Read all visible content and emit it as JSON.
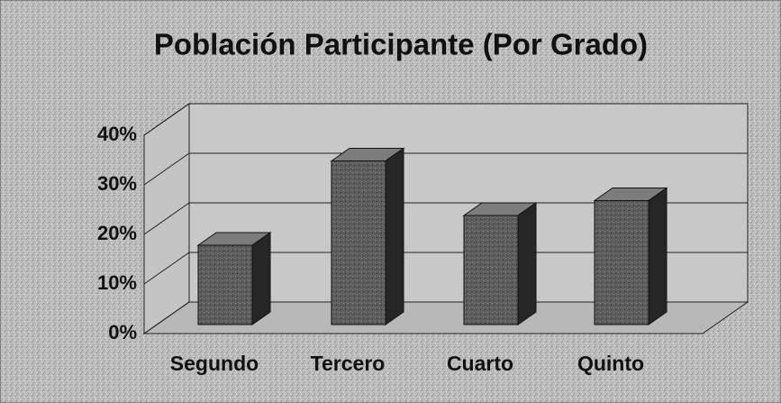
{
  "chart_data": {
    "type": "bar",
    "title": "Población Participante (Por Grado)",
    "categories": [
      "Segundo",
      "Tercero",
      "Cuarto",
      "Quinto"
    ],
    "values": [
      16,
      33,
      22,
      25
    ],
    "color": "#5c5c5c",
    "ylim": [
      0,
      40
    ],
    "yticks": [
      {
        "value": 0,
        "label": "0%"
      },
      {
        "value": 10,
        "label": "10%"
      },
      {
        "value": 20,
        "label": "20%"
      },
      {
        "value": 30,
        "label": "30%"
      },
      {
        "value": 40,
        "label": "40%"
      }
    ],
    "grid": true
  }
}
